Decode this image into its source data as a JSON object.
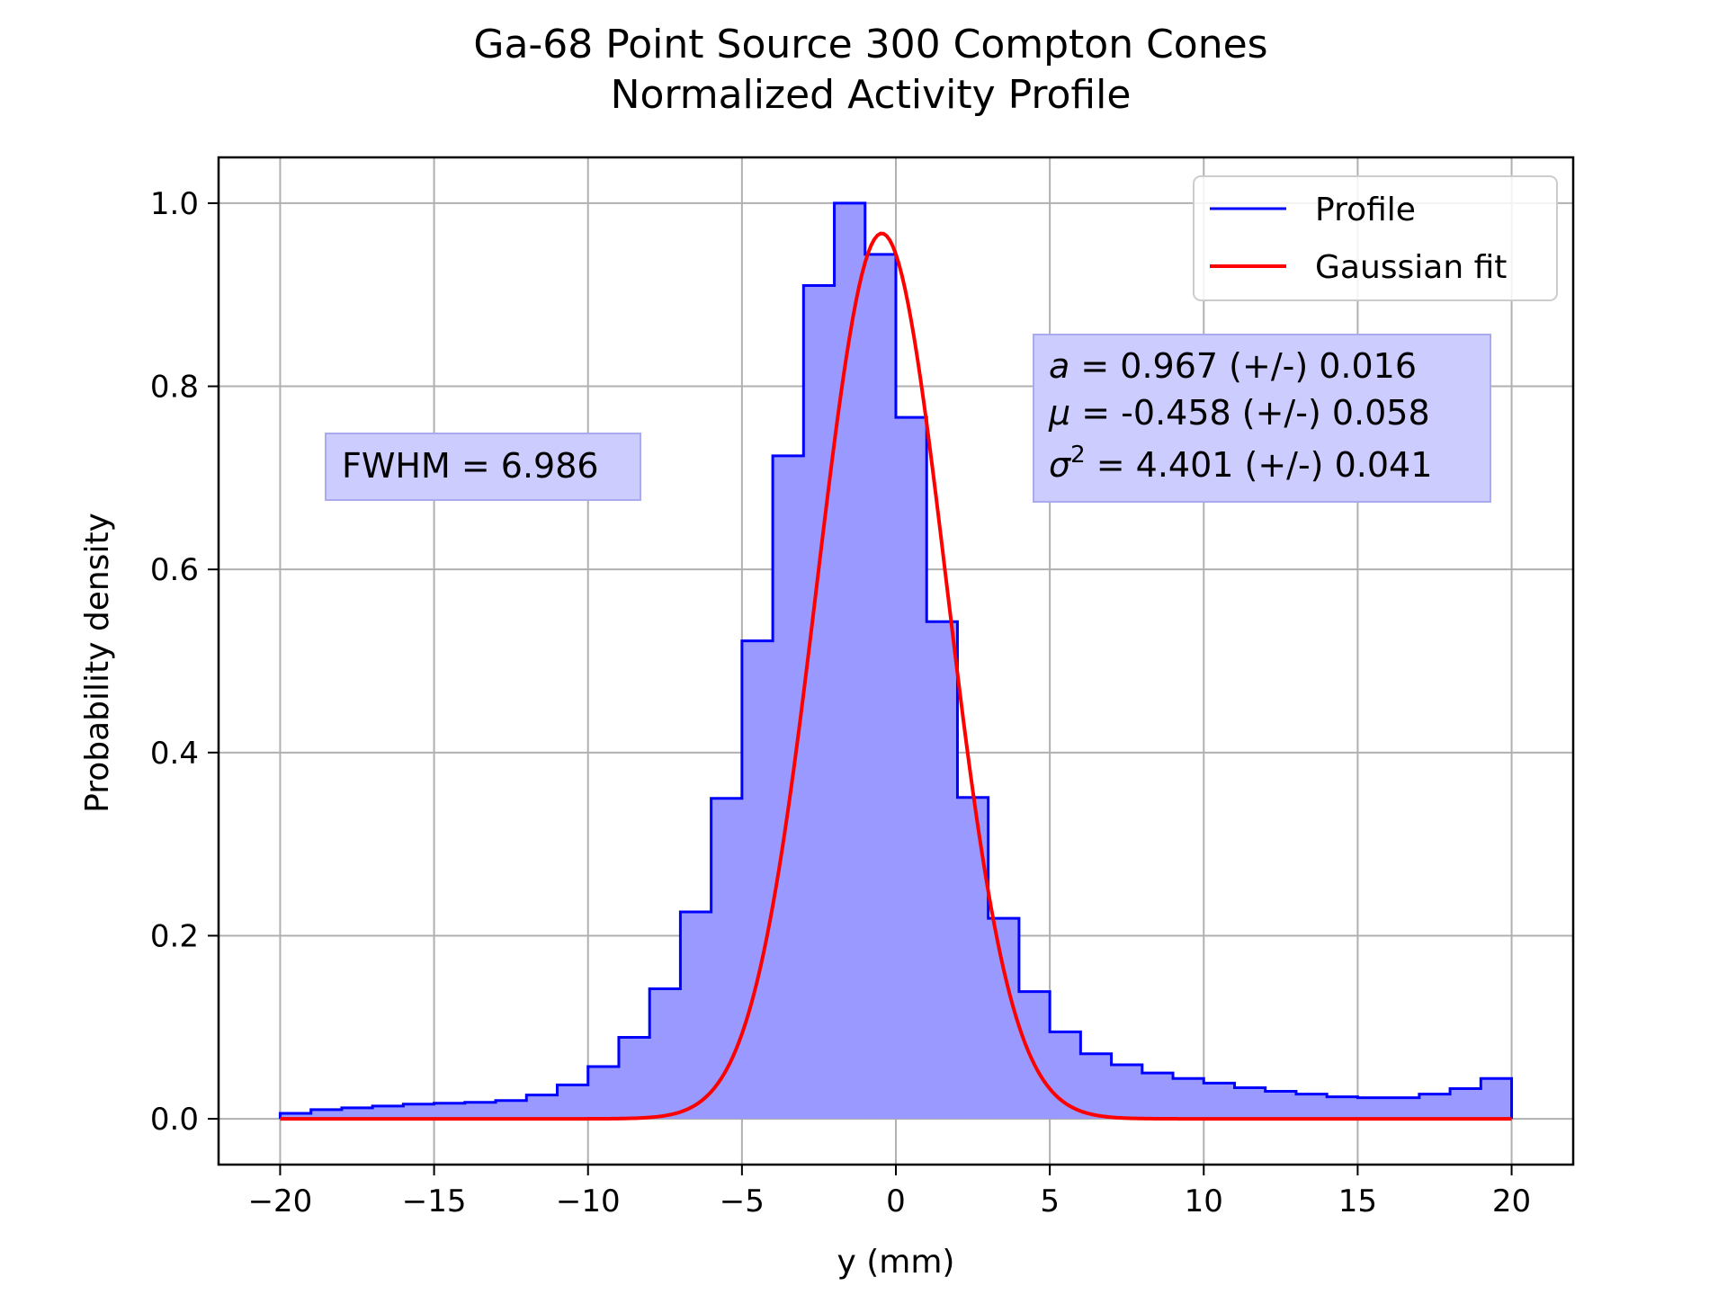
{
  "chart_data": {
    "type": "bar",
    "title": "Ga-68 Point Source 300 Compton Cones",
    "subtitle": "Normalized Activity Profile",
    "xlabel": "y (mm)",
    "ylabel": "Probability density",
    "xlim": [
      -22,
      22
    ],
    "ylim": [
      -0.05,
      1.05
    ],
    "xticks": [
      -20,
      -15,
      -10,
      -5,
      0,
      5,
      10,
      15,
      20
    ],
    "xtick_labels": [
      "−20",
      "−15",
      "−10",
      "−5",
      "0",
      "5",
      "10",
      "15",
      "20"
    ],
    "yticks": [
      0.0,
      0.2,
      0.4,
      0.6,
      0.8,
      1.0
    ],
    "ytick_labels": [
      "0.0",
      "0.2",
      "0.4",
      "0.6",
      "0.8",
      "1.0"
    ],
    "grid": true,
    "legend_position": "top-right",
    "series": [
      {
        "name": "Profile",
        "kind": "step-histogram",
        "color": "#0000ff",
        "fill_color": "#9999ff",
        "bin_edges": [
          -20,
          -19,
          -18,
          -17,
          -16,
          -15,
          -14,
          -13,
          -12,
          -11,
          -10,
          -9,
          -8,
          -7,
          -6,
          -5,
          -4,
          -3,
          -2,
          -1,
          0,
          1,
          2,
          3,
          4,
          5,
          6,
          7,
          8,
          9,
          10,
          11,
          12,
          13,
          14,
          15,
          16,
          17,
          18,
          19,
          20
        ],
        "values": [
          0.006,
          0.01,
          0.012,
          0.014,
          0.016,
          0.017,
          0.018,
          0.02,
          0.026,
          0.037,
          0.057,
          0.089,
          0.142,
          0.226,
          0.35,
          0.522,
          0.724,
          0.91,
          1.0,
          0.944,
          0.766,
          0.543,
          0.351,
          0.219,
          0.139,
          0.095,
          0.071,
          0.059,
          0.05,
          0.044,
          0.039,
          0.034,
          0.03,
          0.027,
          0.024,
          0.023,
          0.023,
          0.027,
          0.033,
          0.044
        ]
      },
      {
        "name": "Gaussian fit",
        "kind": "gaussian-curve",
        "color": "#ff0000",
        "a": 0.967,
        "mu": -0.458,
        "sigma_squared": 4.401,
        "x_range": [
          -20,
          20
        ]
      }
    ],
    "annotations": {
      "fwhm": "FWHM = 6.986",
      "fit_a_symbol": "a",
      "fit_a_text": " = 0.967 (+/-) 0.016",
      "fit_mu_symbol": "μ",
      "fit_mu_text": " = -0.458 (+/-) 0.058",
      "fit_sigma_symbol": "σ",
      "fit_sigma_sup": "2",
      "fit_sigma_text": " = 4.401 (+/-) 0.041",
      "box_color": "#ccccff"
    }
  }
}
